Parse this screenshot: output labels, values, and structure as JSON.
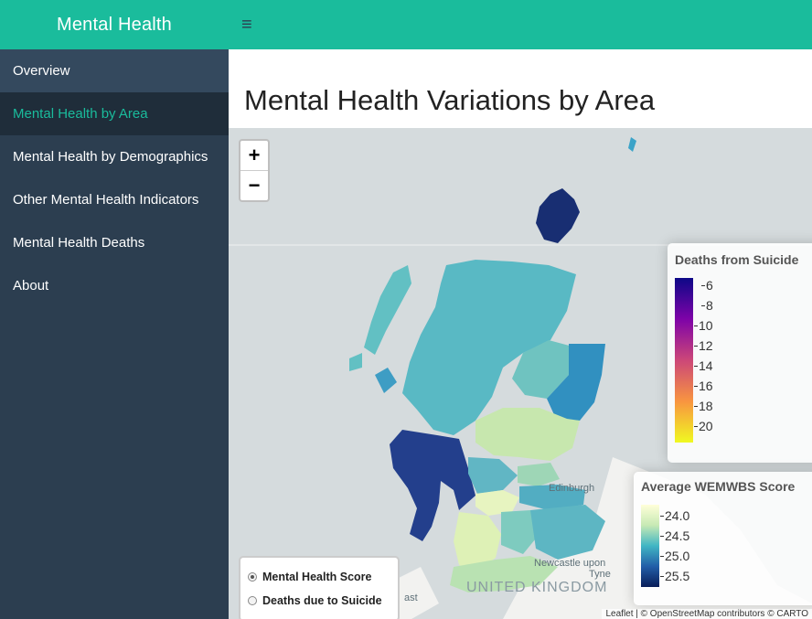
{
  "header": {
    "brand": "Mental Health",
    "menu_icon": "hamburger-icon"
  },
  "sidebar": {
    "items": [
      {
        "label": "Overview"
      },
      {
        "label": "Mental Health by Area",
        "active": true
      },
      {
        "label": "Mental Health by Demographics"
      },
      {
        "label": "Other Mental Health Indicators"
      },
      {
        "label": "Mental Health Deaths"
      },
      {
        "label": "About"
      }
    ]
  },
  "main": {
    "title": "Mental Health Variations by Area",
    "map": {
      "zoom_in": "+",
      "zoom_out": "−",
      "labels": {
        "country": "UNITED KINGDOM",
        "city_edinburgh": "Edinburgh",
        "city_newcastle": "Newcastle upon",
        "city_newcastle_2": "Tyne",
        "city_east": "ast"
      },
      "legend_suicide": {
        "title": "Deaths from Suicide",
        "ticks": [
          "6",
          "8",
          "10",
          "12",
          "14",
          "16",
          "18",
          "20"
        ],
        "colors": [
          "#0d0887",
          "#7e03a8",
          "#cc4778",
          "#f89540",
          "#f0f921"
        ]
      },
      "legend_wemwbs": {
        "title": "Average WEMWBS Score",
        "ticks": [
          "24.0",
          "24.5",
          "25.0",
          "25.5"
        ],
        "colors": [
          "#ffffd9",
          "#c7e9b4",
          "#41b6c4",
          "#225ea8",
          "#081d58"
        ]
      },
      "layer_control": {
        "options": [
          {
            "label": "Mental Health Score",
            "checked": true
          },
          {
            "label": "Deaths due to Suicide",
            "checked": false
          }
        ]
      },
      "attribution": "Leaflet | © OpenStreetMap contributors © CARTO"
    }
  }
}
